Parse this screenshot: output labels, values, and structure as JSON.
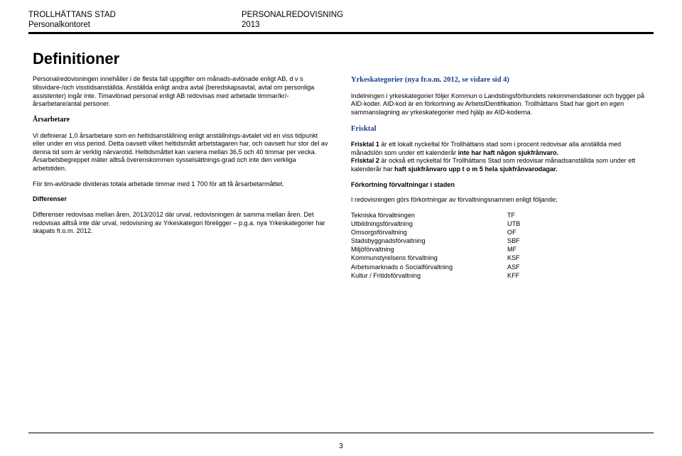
{
  "header": {
    "org": "TROLLHÄTTANS STAD",
    "dept": "Personalkontoret",
    "title": "PERSONALREDOVISNING",
    "year": "2013"
  },
  "page_title": "Definitioner",
  "left": {
    "p1": "Personalredovisningen innehåller i de flesta fall uppgifter om månads-avlönade enligt AB, d v s tillsvidare-/och visstidsanställda. Anställda enligt andra avtal (beredskapsavtal, avtal om personliga assistenter) ingår inte. Timavlönad personal enligt AB redovisas med arbetade timmar/kr/-årsarbetare/antal personer.",
    "h_ars": "Årsarbetare",
    "p2": "Vi definierar 1,0 årsarbetare som en heltidsanställning enligt anställnings-avtalet vid en viss tidpunkt eller under en viss period. Detta oavsett vilket heltidsmått arbetstagaren har, och oavsett hur stor del av denna tid som är verklig närvarotid. Heltidsmåttet kan variera mellan 36,5 och 40 timmar per vecka. Årsarbetsbegreppet mäter alltså överenskommen sysselsättnings-grad och inte den verkliga arbetstiden.",
    "p3": "För tim-avlönade divideras totala arbetade timmar med 1 700 för att få årsarbetarmåttet.",
    "h_diff": "Differenser",
    "p4": "Differenser redovisas mellan åren, 2013/2012 där urval, redovisningen är samma mellan åren. Det redovisas alltså inte där urval, redovisning av Yrkeskategori föreligger – p.g.a.  nya Yrkeskategorier har skapats fr.o.m. 2012."
  },
  "right": {
    "h_yrke": "Yrkeskategorier (nya fr.o.m. 2012, se vidare sid 4)",
    "p1": "Indelningen i yrkeskategorier följer Kommun o Landstingsförbundets rekommendationer och bygger på AID-koder. AID-kod är en förkortning av ArbetsIDentifikation. Trollhättans Stad har gjort en egen sammanslagning av yrkeskategorier med hjälp av AID-koderna.",
    "h_frisk": "Frisktal",
    "p2a": "Frisktal 1 är ett lokalt nyckeltal för Trollhättans stad som i procent redovisar alla anställda med månadslön som under ett kalenderår inte har haft någon sjukfrånvaro.",
    "p2b": "Frisktal 2 är också ett nyckeltal för Trollhättans Stad som redovisar månadsanställda som under ett kalenderår har haft sjukfrånvaro upp t o m 5 hela sjukfrånvarodagar.",
    "h_fork": "Förkortning förvaltningar i staden",
    "p3": "I redovisningen görs förkortningar av förvaltningsnamnen enligt följande;",
    "abbrev": [
      [
        "Tekniska förvaltningen",
        "TF"
      ],
      [
        "Utbildningsförvaltning",
        "UTB"
      ],
      [
        "Omsorgsförvaltning",
        "OF"
      ],
      [
        "Stadsbyggnadsförvaltning",
        "SBF"
      ],
      [
        "Miljöförvaltning",
        "MF"
      ],
      [
        "Kommunstyrelsens förvaltning",
        "KSF"
      ],
      [
        "Arbetsmarknads o Socialförvaltning",
        "ASF"
      ],
      [
        "Kultur / Fritidsförvaltning",
        "KFF"
      ]
    ]
  },
  "page_number": "3"
}
